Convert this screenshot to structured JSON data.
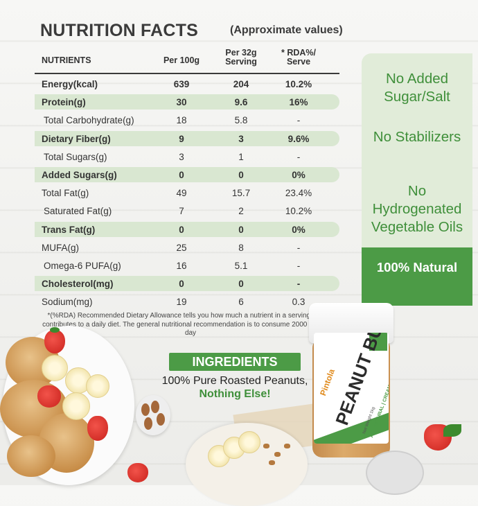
{
  "header": {
    "title": "NUTRITION FACTS",
    "subtitle": "(Approximate values)"
  },
  "table": {
    "columns": [
      "NUTRIENTS",
      "Per 100g",
      "Per 32g Serving",
      "* RDA%/ Serve"
    ],
    "rows": [
      {
        "name": "Energy(kcal)",
        "per100": "639",
        "per32": "204",
        "rda": "10.2%",
        "bold": true,
        "shade": false
      },
      {
        "name": "Protein(g)",
        "per100": "30",
        "per32": "9.6",
        "rda": "16%",
        "bold": true,
        "shade": true
      },
      {
        "name": "Total Carbohydrate(g)",
        "per100": "18",
        "per32": "5.8",
        "rda": "-",
        "bold": false,
        "shade": false
      },
      {
        "name": "Dietary Fiber(g)",
        "per100": "9",
        "per32": "3",
        "rda": "9.6%",
        "bold": true,
        "shade": true
      },
      {
        "name": "Total Sugars(g)",
        "per100": "3",
        "per32": "1",
        "rda": "-",
        "bold": false,
        "shade": false
      },
      {
        "name": "Added Sugars(g)",
        "per100": "0",
        "per32": "0",
        "rda": "0%",
        "bold": true,
        "shade": true
      },
      {
        "name": "Total Fat(g)",
        "per100": "49",
        "per32": "15.7",
        "rda": "23.4%",
        "bold": false,
        "shade": false
      },
      {
        "name": "Saturated Fat(g)",
        "per100": "7",
        "per32": "2",
        "rda": "10.2%",
        "bold": false,
        "shade": false
      },
      {
        "name": "Trans Fat(g)",
        "per100": "0",
        "per32": "0",
        "rda": "0%",
        "bold": true,
        "shade": true
      },
      {
        "name": "MUFA(g)",
        "per100": "25",
        "per32": "8",
        "rda": "-",
        "bold": false,
        "shade": false
      },
      {
        "name": "Omega-6 PUFA(g)",
        "per100": "16",
        "per32": "5.1",
        "rda": "-",
        "bold": false,
        "shade": false
      },
      {
        "name": "Cholesterol(mg)",
        "per100": "0",
        "per32": "0",
        "rda": "-",
        "bold": true,
        "shade": true
      },
      {
        "name": "Sodium(mg)",
        "per100": "19",
        "per32": "6",
        "rda": "0.3",
        "bold": false,
        "shade": false
      }
    ]
  },
  "footnote": "*(%RDA) Recommended Dietary Allowance tells you how much a nutrient in a serving of food contributes to a daily diet. The general nutritional recommendation is to consume 2000 calories a day",
  "claims": {
    "c1": "No Added Sugar/Salt",
    "c2": "No Stabilizers",
    "c3": "No Hydrogenated Vegetable Oils",
    "c4": "100% Natural"
  },
  "ingredients": {
    "badge": "INGREDIENTS",
    "line1": "100% Pure Roasted Peanuts,",
    "line2": "Nothing Else!"
  },
  "jar": {
    "brand": "Pintola",
    "title": "PEANUT BUTTER",
    "subtitle": "ALL NATURAL | CREAMY | UNSWEETENED",
    "weight": "Net Weight 1kg"
  },
  "colors": {
    "accent_green": "#4c9b46",
    "light_green": "#d9e7d1",
    "text_dark": "#3b3b3b"
  }
}
